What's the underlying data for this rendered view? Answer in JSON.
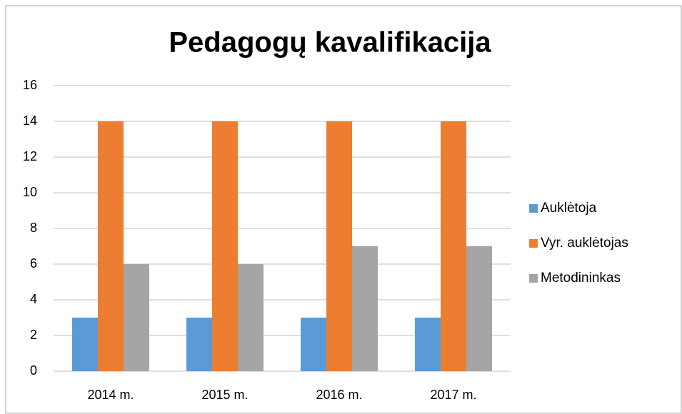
{
  "chart_data": {
    "type": "bar",
    "title": "Pedagogų kavalifikacija",
    "categories": [
      "2014 m.",
      "2015 m.",
      "2016 m.",
      "2017 m."
    ],
    "series": [
      {
        "name": "Auklėtoja",
        "color": "#5b9bd5",
        "values": [
          3,
          3,
          3,
          3
        ]
      },
      {
        "name": "Vyr. auklėtojas",
        "color": "#ed7d31",
        "values": [
          14,
          14,
          14,
          14
        ]
      },
      {
        "name": "Metodininkas",
        "color": "#a5a5a5",
        "values": [
          6,
          6,
          7,
          7
        ]
      }
    ],
    "ylim": [
      0,
      16
    ],
    "yticks": [
      0,
      2,
      4,
      6,
      8,
      10,
      12,
      14,
      16
    ],
    "grid": true,
    "legend": "right"
  }
}
